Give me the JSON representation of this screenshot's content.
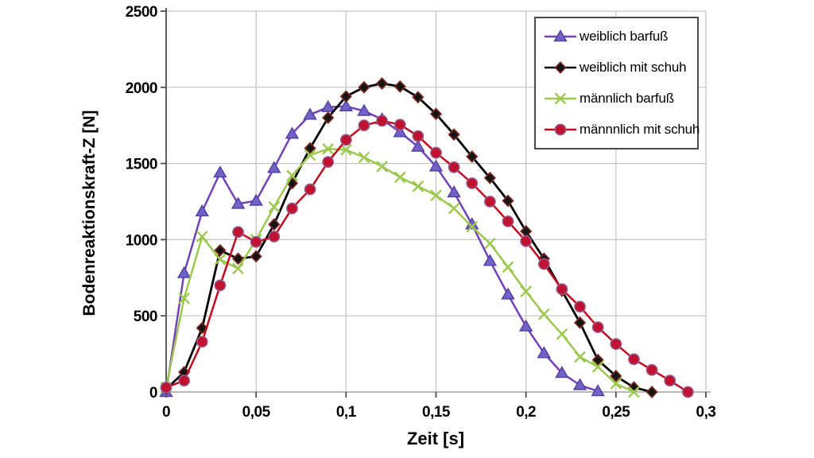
{
  "chart_data": {
    "type": "line",
    "title": "",
    "xlabel": "Zeit [s]",
    "ylabel": "Bodenreaktionskraft-Z [N]",
    "xlim": [
      0,
      0.3
    ],
    "ylim": [
      0,
      2500
    ],
    "grid": true,
    "legend_position": "top-right-inside",
    "background_color": "#ffffff",
    "gridline_color": "#c3c3c3",
    "axis_color": "#4d4d4d",
    "x_axis_line_color": "#a0a0a0",
    "x_ticks": {
      "values": [
        0,
        0.05,
        0.1,
        0.15,
        0.2,
        0.25,
        0.3
      ],
      "labels": [
        "0",
        "0,05",
        "0,1",
        "0,15",
        "0,2",
        "0,25",
        "0,3"
      ]
    },
    "y_ticks": {
      "values": [
        0,
        500,
        1000,
        1500,
        2000,
        2500
      ],
      "labels": [
        "0",
        "500",
        "1000",
        "1500",
        "2000",
        "2500"
      ]
    },
    "series": [
      {
        "name": "weiblich barfuß",
        "line_color": "#7142B8",
        "marker": "triangle",
        "marker_fill": "#6F63C8",
        "marker_stroke": "#563D9E",
        "points": [
          [
            0,
            0
          ],
          [
            0.01,
            780
          ],
          [
            0.02,
            1185
          ],
          [
            0.03,
            1440
          ],
          [
            0.04,
            1235
          ],
          [
            0.05,
            1255
          ],
          [
            0.06,
            1470
          ],
          [
            0.07,
            1695
          ],
          [
            0.08,
            1820
          ],
          [
            0.09,
            1870
          ],
          [
            0.1,
            1875
          ],
          [
            0.11,
            1845
          ],
          [
            0.12,
            1790
          ],
          [
            0.13,
            1705
          ],
          [
            0.14,
            1610
          ],
          [
            0.15,
            1480
          ],
          [
            0.16,
            1310
          ],
          [
            0.17,
            1100
          ],
          [
            0.18,
            860
          ],
          [
            0.19,
            640
          ],
          [
            0.2,
            430
          ],
          [
            0.21,
            255
          ],
          [
            0.22,
            125
          ],
          [
            0.23,
            45
          ],
          [
            0.24,
            5
          ]
        ]
      },
      {
        "name": "weiblich mit schuh",
        "line_color": "#000000",
        "marker": "diamond",
        "marker_fill": "#141414",
        "marker_stroke": "#7E2A22",
        "points": [
          [
            0,
            20
          ],
          [
            0.01,
            130
          ],
          [
            0.02,
            420
          ],
          [
            0.03,
            930
          ],
          [
            0.04,
            875
          ],
          [
            0.05,
            890
          ],
          [
            0.06,
            1100
          ],
          [
            0.07,
            1370
          ],
          [
            0.08,
            1600
          ],
          [
            0.09,
            1800
          ],
          [
            0.1,
            1940
          ],
          [
            0.11,
            2000
          ],
          [
            0.12,
            2025
          ],
          [
            0.13,
            2005
          ],
          [
            0.14,
            1935
          ],
          [
            0.15,
            1825
          ],
          [
            0.16,
            1690
          ],
          [
            0.17,
            1545
          ],
          [
            0.18,
            1405
          ],
          [
            0.19,
            1255
          ],
          [
            0.2,
            1055
          ],
          [
            0.21,
            875
          ],
          [
            0.22,
            665
          ],
          [
            0.23,
            455
          ],
          [
            0.24,
            210
          ],
          [
            0.25,
            105
          ],
          [
            0.26,
            30
          ],
          [
            0.27,
            0
          ]
        ]
      },
      {
        "name": "männlich barfuß",
        "line_color": "#9CC84E",
        "marker": "x",
        "marker_fill": "#9CC84E",
        "marker_stroke": "#9CC84E",
        "points": [
          [
            0,
            30
          ],
          [
            0.01,
            615
          ],
          [
            0.02,
            1020
          ],
          [
            0.03,
            870
          ],
          [
            0.04,
            810
          ],
          [
            0.05,
            1000
          ],
          [
            0.06,
            1215
          ],
          [
            0.07,
            1420
          ],
          [
            0.08,
            1555
          ],
          [
            0.09,
            1595
          ],
          [
            0.1,
            1590
          ],
          [
            0.11,
            1540
          ],
          [
            0.12,
            1480
          ],
          [
            0.13,
            1410
          ],
          [
            0.14,
            1350
          ],
          [
            0.15,
            1290
          ],
          [
            0.16,
            1205
          ],
          [
            0.17,
            1085
          ],
          [
            0.18,
            975
          ],
          [
            0.19,
            820
          ],
          [
            0.2,
            660
          ],
          [
            0.21,
            510
          ],
          [
            0.22,
            380
          ],
          [
            0.23,
            230
          ],
          [
            0.24,
            165
          ],
          [
            0.25,
            55
          ],
          [
            0.26,
            0
          ]
        ]
      },
      {
        "name": "männnlich mit schuh",
        "line_color": "#C00A20",
        "marker": "circle",
        "marker_fill": "#C11030",
        "marker_stroke": "#925C8B",
        "points": [
          [
            0,
            30
          ],
          [
            0.01,
            75
          ],
          [
            0.02,
            330
          ],
          [
            0.03,
            700
          ],
          [
            0.04,
            1050
          ],
          [
            0.05,
            985
          ],
          [
            0.06,
            1020
          ],
          [
            0.07,
            1205
          ],
          [
            0.08,
            1330
          ],
          [
            0.09,
            1510
          ],
          [
            0.1,
            1655
          ],
          [
            0.11,
            1750
          ],
          [
            0.12,
            1780
          ],
          [
            0.13,
            1755
          ],
          [
            0.14,
            1680
          ],
          [
            0.15,
            1570
          ],
          [
            0.16,
            1475
          ],
          [
            0.17,
            1370
          ],
          [
            0.18,
            1250
          ],
          [
            0.19,
            1120
          ],
          [
            0.2,
            990
          ],
          [
            0.21,
            840
          ],
          [
            0.22,
            675
          ],
          [
            0.23,
            560
          ],
          [
            0.24,
            425
          ],
          [
            0.25,
            315
          ],
          [
            0.26,
            215
          ],
          [
            0.27,
            145
          ],
          [
            0.28,
            75
          ],
          [
            0.29,
            0
          ]
        ]
      }
    ]
  }
}
